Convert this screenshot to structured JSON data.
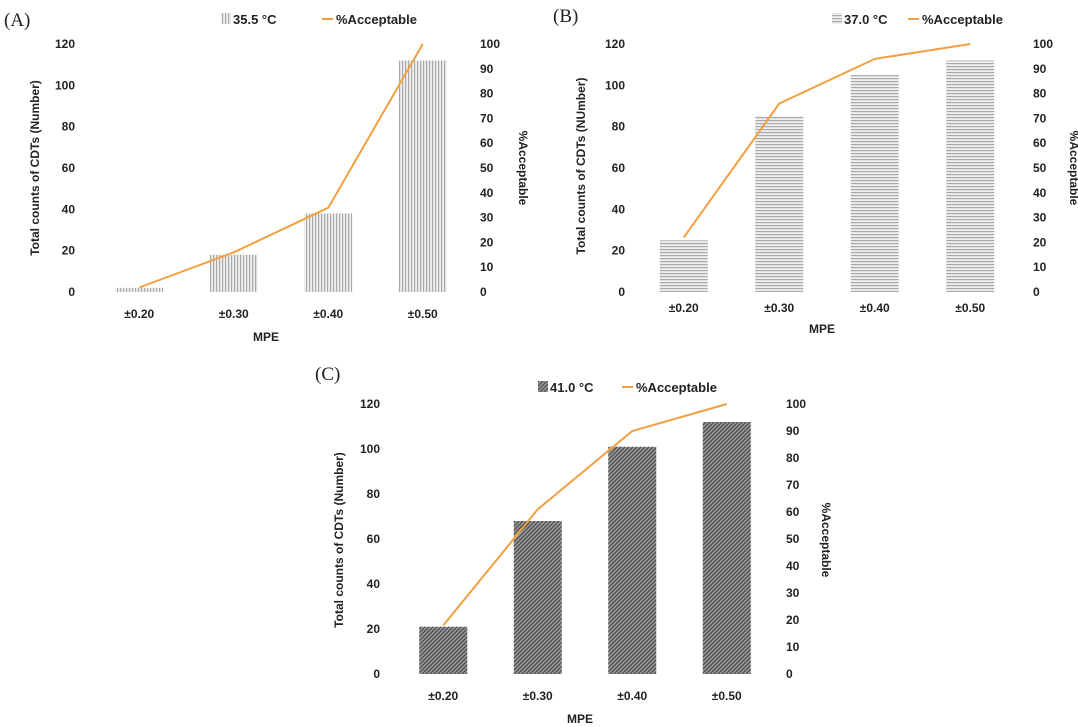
{
  "chart_data": [
    {
      "panel_label": "(A)",
      "type": "bar",
      "xlabel": "MPE",
      "ylabel": "Total counts of CDTs (Number)",
      "y2label": "%Acceptable",
      "categories": [
        "±0.20",
        "±0.30",
        "±0.40",
        "±0.50"
      ],
      "ylim": [
        0,
        120
      ],
      "yticks": [
        "0",
        "20",
        "40",
        "60",
        "80",
        "100",
        "120"
      ],
      "y2lim": [
        0,
        100
      ],
      "y2ticks": [
        "0",
        "10",
        "20",
        "30",
        "40",
        "50",
        "60",
        "70",
        "80",
        "90",
        "100"
      ],
      "grid": false,
      "legend_position": "top",
      "series": [
        {
          "name": "35.5 °C",
          "kind": "bar",
          "pattern": "vertical-lines",
          "values": [
            2,
            18,
            38,
            112
          ]
        },
        {
          "name": "%Acceptable",
          "kind": "line",
          "axis": "secondary",
          "color": "#f0a040",
          "values": [
            1.8,
            16,
            34,
            100
          ]
        }
      ]
    },
    {
      "panel_label": "(B)",
      "type": "bar",
      "xlabel": "MPE",
      "ylabel": "Total counts of CDTs (NUmber)",
      "y2label": "%Acceptable",
      "categories": [
        "±0.20",
        "±0.30",
        "±0.40",
        "±0.50"
      ],
      "ylim": [
        0,
        120
      ],
      "yticks": [
        "0",
        "20",
        "40",
        "60",
        "80",
        "100",
        "120"
      ],
      "y2lim": [
        0,
        100
      ],
      "y2ticks": [
        "0",
        "10",
        "20",
        "30",
        "40",
        "50",
        "60",
        "70",
        "80",
        "90",
        "100"
      ],
      "grid": false,
      "legend_position": "top-right",
      "series": [
        {
          "name": "37.0 °C",
          "kind": "bar",
          "pattern": "horizontal-lines",
          "values": [
            25,
            85,
            105,
            112
          ]
        },
        {
          "name": "%Acceptable",
          "kind": "line",
          "axis": "secondary",
          "color": "#f0a040",
          "values": [
            22,
            76,
            94,
            100
          ]
        }
      ]
    },
    {
      "panel_label": "(C)",
      "type": "bar",
      "xlabel": "MPE",
      "ylabel": "Total counts of CDTs (Number)",
      "y2label": "%Acceptable",
      "categories": [
        "±0.20",
        "±0.30",
        "±0.40",
        "±0.50"
      ],
      "ylim": [
        0,
        120
      ],
      "yticks": [
        "0",
        "20",
        "40",
        "60",
        "80",
        "100",
        "120"
      ],
      "y2lim": [
        0,
        100
      ],
      "y2ticks": [
        "0",
        "10",
        "20",
        "30",
        "40",
        "50",
        "60",
        "70",
        "80",
        "90",
        "100"
      ],
      "grid": false,
      "legend_position": "top",
      "series": [
        {
          "name": "41.0 °C",
          "kind": "bar",
          "pattern": "diagonal-hatch",
          "values": [
            21,
            68,
            101,
            112
          ]
        },
        {
          "name": "%Acceptable",
          "kind": "line",
          "axis": "secondary",
          "color": "#f0a040",
          "values": [
            18,
            61,
            90,
            100
          ]
        }
      ]
    }
  ]
}
